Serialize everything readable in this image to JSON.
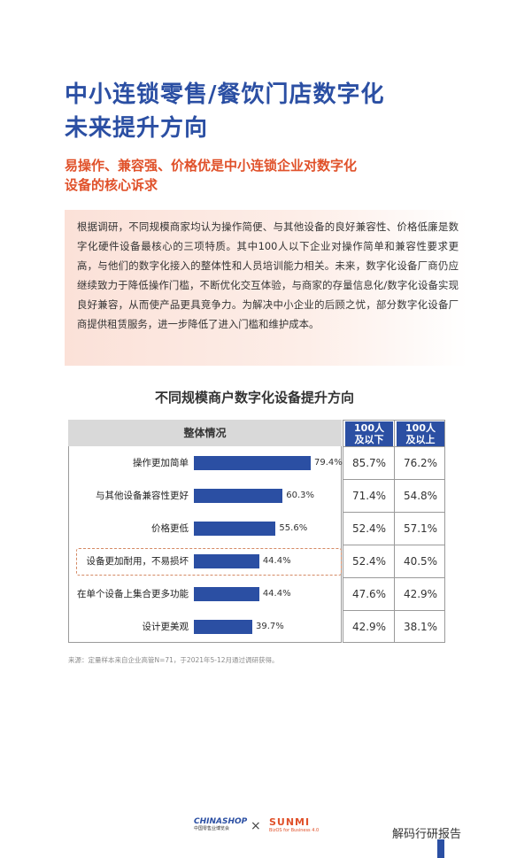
{
  "page": {
    "title_line1": "中小连锁零售/餐饮门店数字化",
    "title_line2": "未来提升方向",
    "subtitle_line1": "易操作、兼容强、价格优是中小连锁企业对数字化",
    "subtitle_line2": "设备的核心诉求",
    "intro_text": "根据调研，不同规模商家均认为操作简便、与其他设备的良好兼容性、价格低廉是数字化硬件设备最核心的三项特质。其中100人以下企业对操作简单和兼容性要求更高，与他们的数字化接入的整体性和人员培训能力相关。未来，数字化设备厂商仍应继续致力于降低操作门槛，不断优化交互体验，与商家的存量信息化/数字化设备实现良好兼容，从而使产品更具竞争力。为解决中小企业的后顾之忧，部分数字化设备厂商提供租赁服务，进一步降低了进入门槛和维护成本。",
    "source_note": "来源：定量样本来自企业高管N=71，于2021年5-12月通过调研获得。"
  },
  "chart_data": {
    "type": "bar",
    "orientation": "horizontal",
    "title": "不同规模商户数字化设备提升方向",
    "overall_header": "整体情况",
    "col1_header": [
      "100人",
      "及以下"
    ],
    "col2_header": [
      "100人",
      "及以上"
    ],
    "categories": [
      "操作更加简单",
      "与其他设备兼容性更好",
      "价格更低",
      "设备更加耐用，不易损坏",
      "在单个设备上集合更多功能",
      "设计更美观"
    ],
    "values": [
      79.4,
      60.3,
      55.6,
      44.4,
      44.4,
      39.7
    ],
    "value_labels": [
      "79.4%",
      "60.3%",
      "55.6%",
      "44.4%",
      "44.4%",
      "39.7%"
    ],
    "col1_values": [
      "85.7%",
      "71.4%",
      "52.4%",
      "52.4%",
      "47.6%",
      "42.9%"
    ],
    "col2_values": [
      "76.2%",
      "54.8%",
      "57.1%",
      "40.5%",
      "42.9%",
      "38.1%"
    ],
    "xlim": [
      0,
      100
    ],
    "bar_color": "#2b4fa3",
    "highlighted_row": "设备更加耐用，不易损坏"
  },
  "footer": {
    "chinashop_brand_a": "CHINA",
    "chinashop_brand_b": "SHOP",
    "chinashop_sub": "中国零售业博览会",
    "times_sign": "×",
    "sunmi_brand": "SUNMI",
    "sunmi_sub": "BizOS for Business 4.0",
    "watermark": "解码行研报告"
  },
  "colors": {
    "accent": "#2b4fa3",
    "orange": "#e0512a"
  }
}
